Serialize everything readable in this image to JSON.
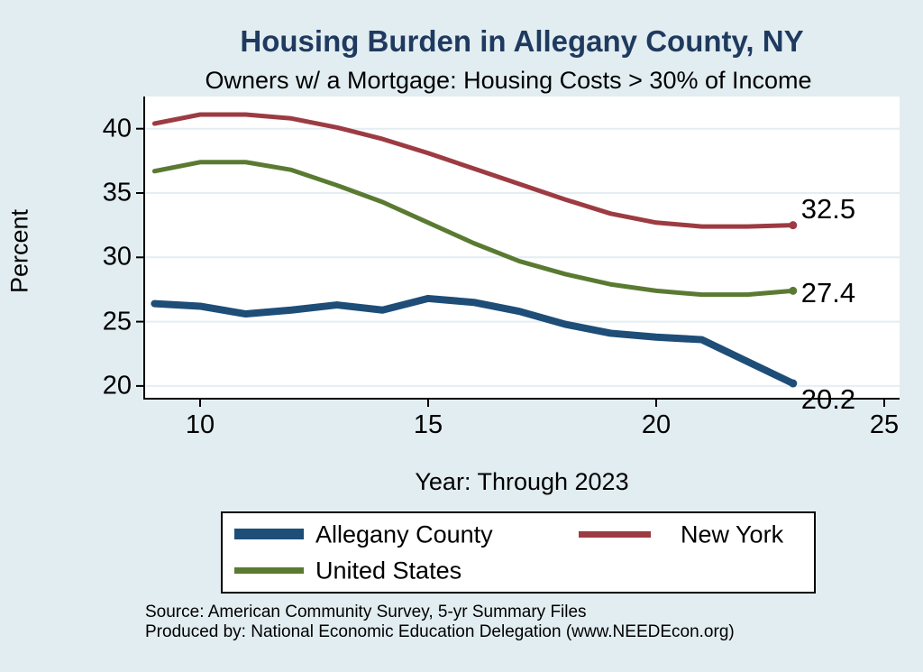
{
  "page": {
    "background": "#e2edf1",
    "title_color": "#1f3a5f"
  },
  "chart_data": {
    "type": "line",
    "title": "Housing Burden in Allegany County, NY",
    "subtitle": "Owners w/ a Mortgage: Housing Costs > 30% of Income",
    "xlabel": "Year: Through 2023",
    "ylabel": "Percent",
    "x": [
      9,
      10,
      11,
      12,
      13,
      14,
      15,
      16,
      17,
      18,
      19,
      20,
      21,
      22,
      23
    ],
    "x_ticks": [
      10,
      15,
      20,
      25
    ],
    "x_tick_labels": [
      "10",
      "15",
      "20",
      "25"
    ],
    "y_ticks": [
      20,
      25,
      30,
      35,
      40
    ],
    "y_tick_labels": [
      "20",
      "25",
      "30",
      "35",
      "40"
    ],
    "xlim": [
      8.8,
      25.3
    ],
    "ylim": [
      19.0,
      42.4
    ],
    "grid": true,
    "gridline_color": "#e4eef2",
    "plot_background": "#ffffff",
    "legend_position": "bottom",
    "series": [
      {
        "name": "Allegany County",
        "color": "#1e4d78",
        "line_width": 8,
        "end_label": "20.2",
        "values": [
          26.4,
          26.2,
          25.6,
          25.9,
          26.3,
          25.9,
          26.8,
          26.5,
          25.8,
          24.8,
          24.1,
          23.8,
          23.6,
          21.9,
          20.2
        ]
      },
      {
        "name": "New York",
        "color": "#9d3b42",
        "line_width": 5,
        "end_label": "32.5",
        "values": [
          40.4,
          41.1,
          41.1,
          40.8,
          40.1,
          39.2,
          38.1,
          36.9,
          35.7,
          34.5,
          33.4,
          32.7,
          32.4,
          32.4,
          32.5
        ]
      },
      {
        "name": "United States",
        "color": "#5a7a32",
        "line_width": 5,
        "end_label": "27.4",
        "values": [
          36.7,
          37.4,
          37.4,
          36.8,
          35.6,
          34.3,
          32.7,
          31.1,
          29.7,
          28.7,
          27.9,
          27.4,
          27.1,
          27.1,
          27.4
        ]
      }
    ]
  },
  "footer": {
    "line1": "Source: American Community Survey, 5-yr Summary Files",
    "line2": "Produced by: National Economic Education Delegation (www.NEEDEcon.org)"
  }
}
